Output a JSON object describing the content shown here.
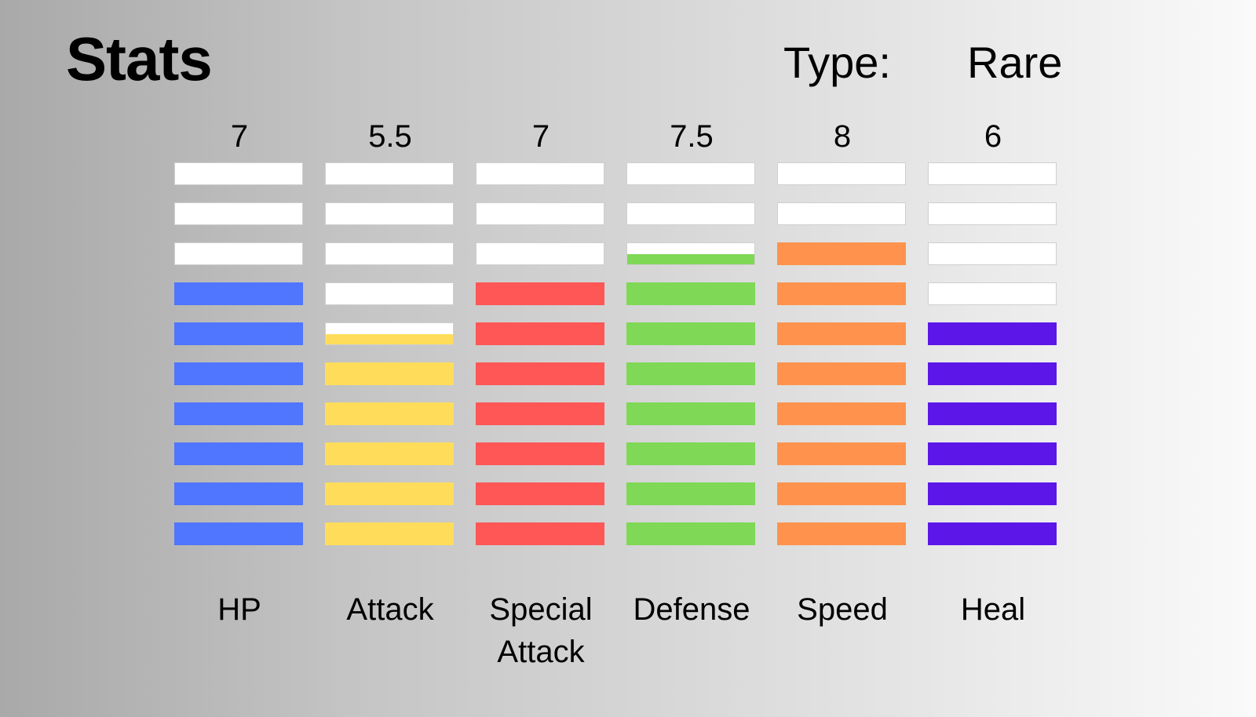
{
  "header": {
    "title": "Stats",
    "type_label": "Type:",
    "type_value": "Rare"
  },
  "stats": [
    {
      "label": "HP",
      "value_text": "7",
      "value": 7,
      "color": "#5075ff"
    },
    {
      "label": "Attack",
      "value_text": "5.5",
      "value": 5.5,
      "color": "#ffdd5a"
    },
    {
      "label": "Special\nAttack",
      "value_text": "7",
      "value": 7,
      "color": "#ff5656"
    },
    {
      "label": "Defense",
      "value_text": "7.5",
      "value": 7.5,
      "color": "#7fd856"
    },
    {
      "label": "Speed",
      "value_text": "8",
      "value": 8,
      "color": "#ff934d"
    },
    {
      "label": "Heal",
      "value_text": "6",
      "value": 6,
      "color": "#5c17e8"
    }
  ],
  "scale_max": 10
}
